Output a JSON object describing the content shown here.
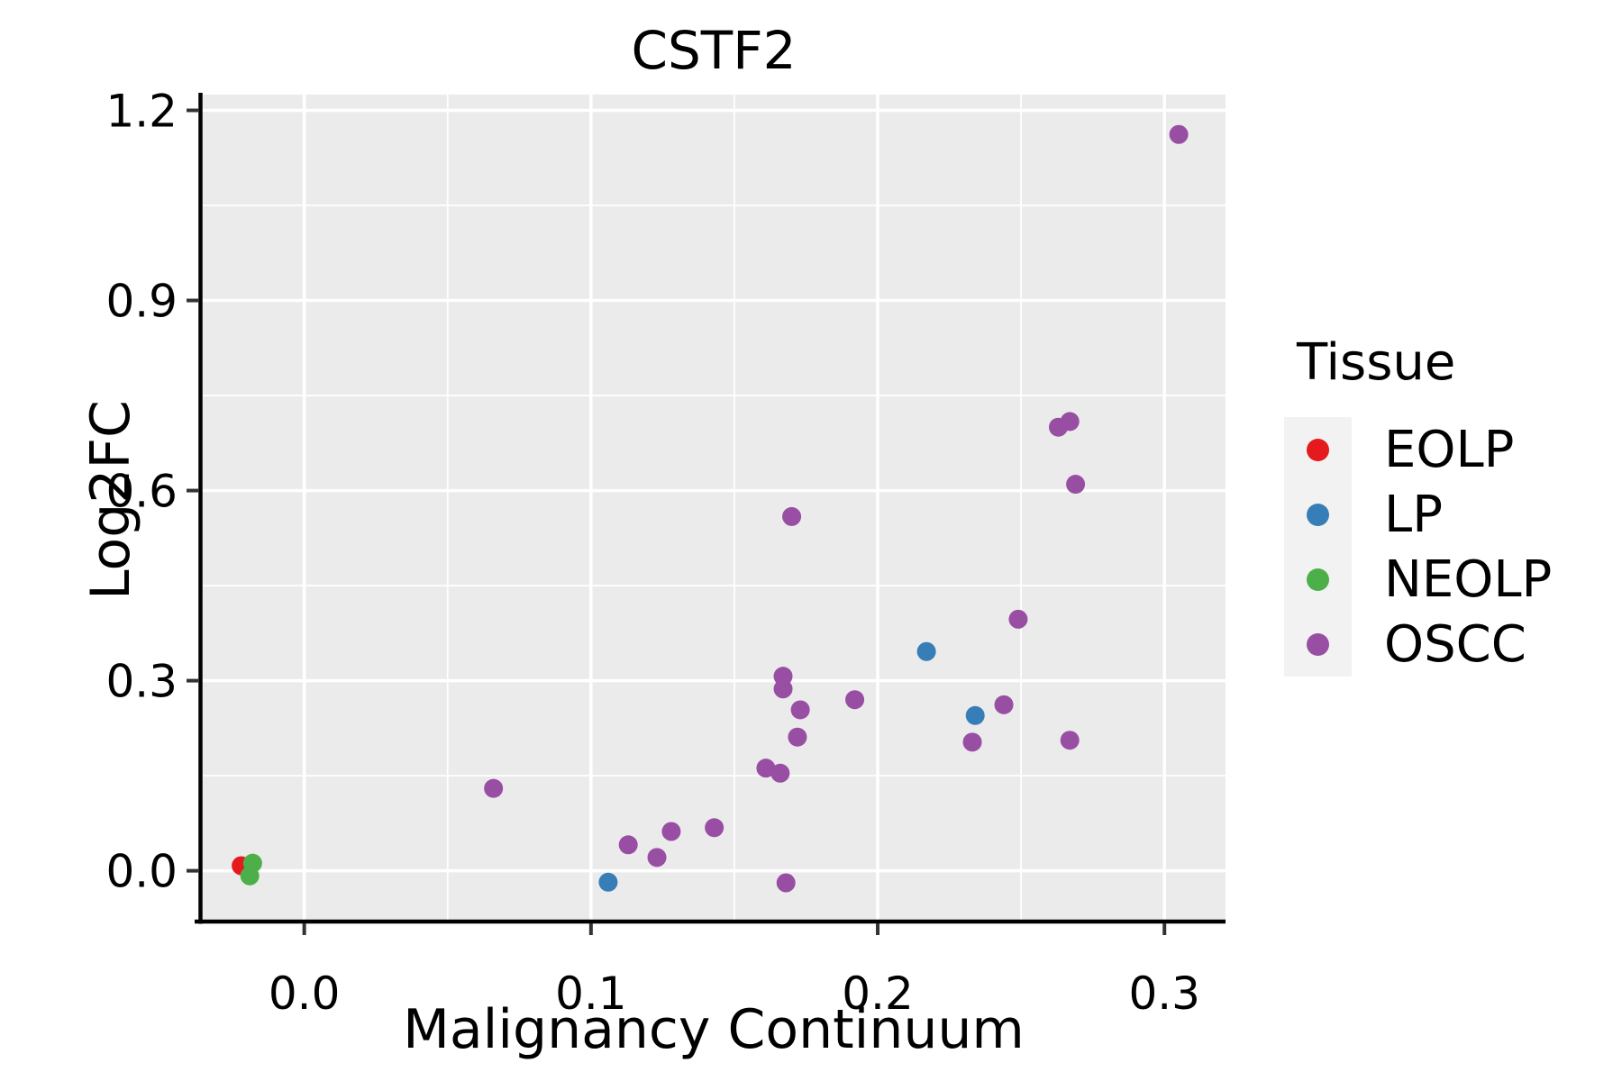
{
  "figure": {
    "title": "CSTF2"
  },
  "axes": {
    "x": {
      "label": "Malignancy Continuum",
      "tick_labels": [
        "0.0",
        "0.1",
        "0.2",
        "0.3"
      ],
      "ticks": [
        0.0,
        0.1,
        0.2,
        0.3
      ],
      "minor_ticks": [
        0.05,
        0.15,
        0.25
      ],
      "lim": [
        -0.0354,
        0.3213
      ]
    },
    "y": {
      "label": "Log2FC",
      "tick_labels": [
        "0.0",
        "0.3",
        "0.6",
        "0.9",
        "1.2"
      ],
      "ticks": [
        0.0,
        0.3,
        0.6,
        0.9,
        1.2
      ],
      "minor_ticks": [
        0.15,
        0.45,
        0.75,
        1.05
      ],
      "lim": [
        -0.0773,
        1.2249
      ]
    }
  },
  "legend": {
    "title": "Tissue"
  },
  "style": {
    "panel_bg": "#EBEBEB",
    "grid_color": "#FFFFFF",
    "legend_key_bg": "#F2F2F2",
    "axis_color": "#000000",
    "tick_color": "#333333"
  },
  "chart_data": {
    "type": "scatter",
    "title": "CSTF2",
    "xlabel": "Malignancy Continuum",
    "ylabel": "Log2FC",
    "xlim": [
      -0.0354,
      0.3213
    ],
    "ylim": [
      -0.0773,
      1.2249
    ],
    "grid": "on",
    "legend_position": "right",
    "legend_title": "Tissue",
    "series": [
      {
        "name": "EOLP",
        "color": "#E41A1C",
        "points": [
          [
            -0.022,
            0.008
          ]
        ]
      },
      {
        "name": "LP",
        "color": "#377EB8",
        "points": [
          [
            0.106,
            -0.018
          ],
          [
            0.217,
            0.346
          ],
          [
            0.234,
            0.245
          ]
        ]
      },
      {
        "name": "NEOLP",
        "color": "#4DAF4A",
        "points": [
          [
            -0.018,
            0.012
          ],
          [
            -0.019,
            -0.008
          ]
        ]
      },
      {
        "name": "OSCC",
        "color": "#984EA3",
        "points": [
          [
            0.066,
            0.13
          ],
          [
            0.113,
            0.041
          ],
          [
            0.123,
            0.021
          ],
          [
            0.128,
            0.062
          ],
          [
            0.143,
            0.068
          ],
          [
            0.161,
            0.162
          ],
          [
            0.166,
            0.154
          ],
          [
            0.167,
            0.307
          ],
          [
            0.167,
            0.287
          ],
          [
            0.168,
            -0.019
          ],
          [
            0.17,
            0.559
          ],
          [
            0.172,
            0.211
          ],
          [
            0.173,
            0.254
          ],
          [
            0.192,
            0.27
          ],
          [
            0.233,
            0.203
          ],
          [
            0.244,
            0.262
          ],
          [
            0.249,
            0.397
          ],
          [
            0.263,
            0.7
          ],
          [
            0.267,
            0.709
          ],
          [
            0.269,
            0.61
          ],
          [
            0.267,
            0.206
          ],
          [
            0.305,
            1.162
          ]
        ]
      }
    ]
  }
}
